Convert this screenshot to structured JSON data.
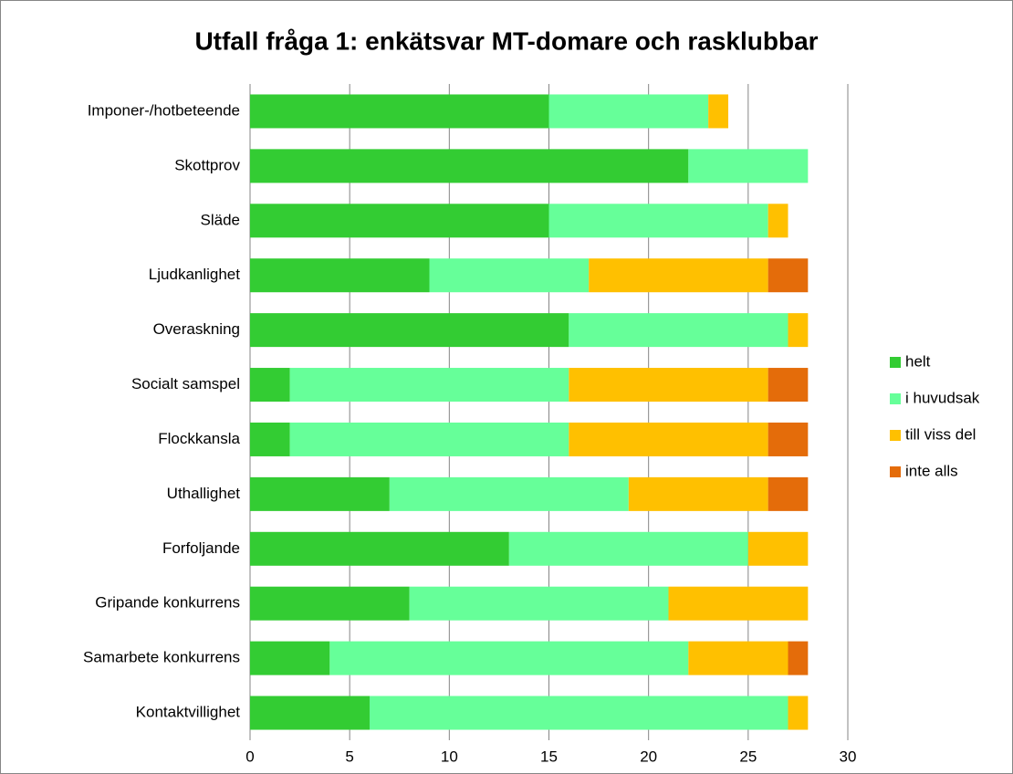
{
  "chart_data": {
    "type": "stacked_bar_horizontal",
    "title": "Utfall fråga 1: enkätsvar MT-domare och rasklubbar",
    "categories": [
      "Imponer-/hotbeteende",
      "Skottprov",
      "Släde",
      "Ljudkanlighet",
      "Overaskning",
      "Socialt samspel",
      "Flockkansla",
      "Uthallighet",
      "Forfoljande",
      "Gripande konkurrens",
      "Samarbete konkurrens",
      "Kontaktvillighet"
    ],
    "series": [
      {
        "name": "helt",
        "color": "#33cc33",
        "values": [
          15,
          22,
          15,
          9,
          16,
          2,
          2,
          7,
          13,
          8,
          4,
          6
        ]
      },
      {
        "name": "i huvudsak",
        "color": "#66ff99",
        "values": [
          8,
          6,
          11,
          8,
          11,
          14,
          14,
          12,
          12,
          13,
          18,
          21
        ]
      },
      {
        "name": "till viss del",
        "color": "#ffc000",
        "values": [
          1,
          0,
          1,
          9,
          1,
          10,
          10,
          7,
          3,
          7,
          5,
          1
        ]
      },
      {
        "name": "inte alls",
        "color": "#e46c0a",
        "values": [
          0,
          0,
          0,
          2,
          0,
          2,
          2,
          2,
          0,
          0,
          1,
          0
        ]
      }
    ],
    "xlim": [
      0,
      30
    ],
    "xticks": [
      0,
      5,
      10,
      15,
      20,
      25,
      30
    ],
    "grid": true,
    "legend": "right"
  }
}
